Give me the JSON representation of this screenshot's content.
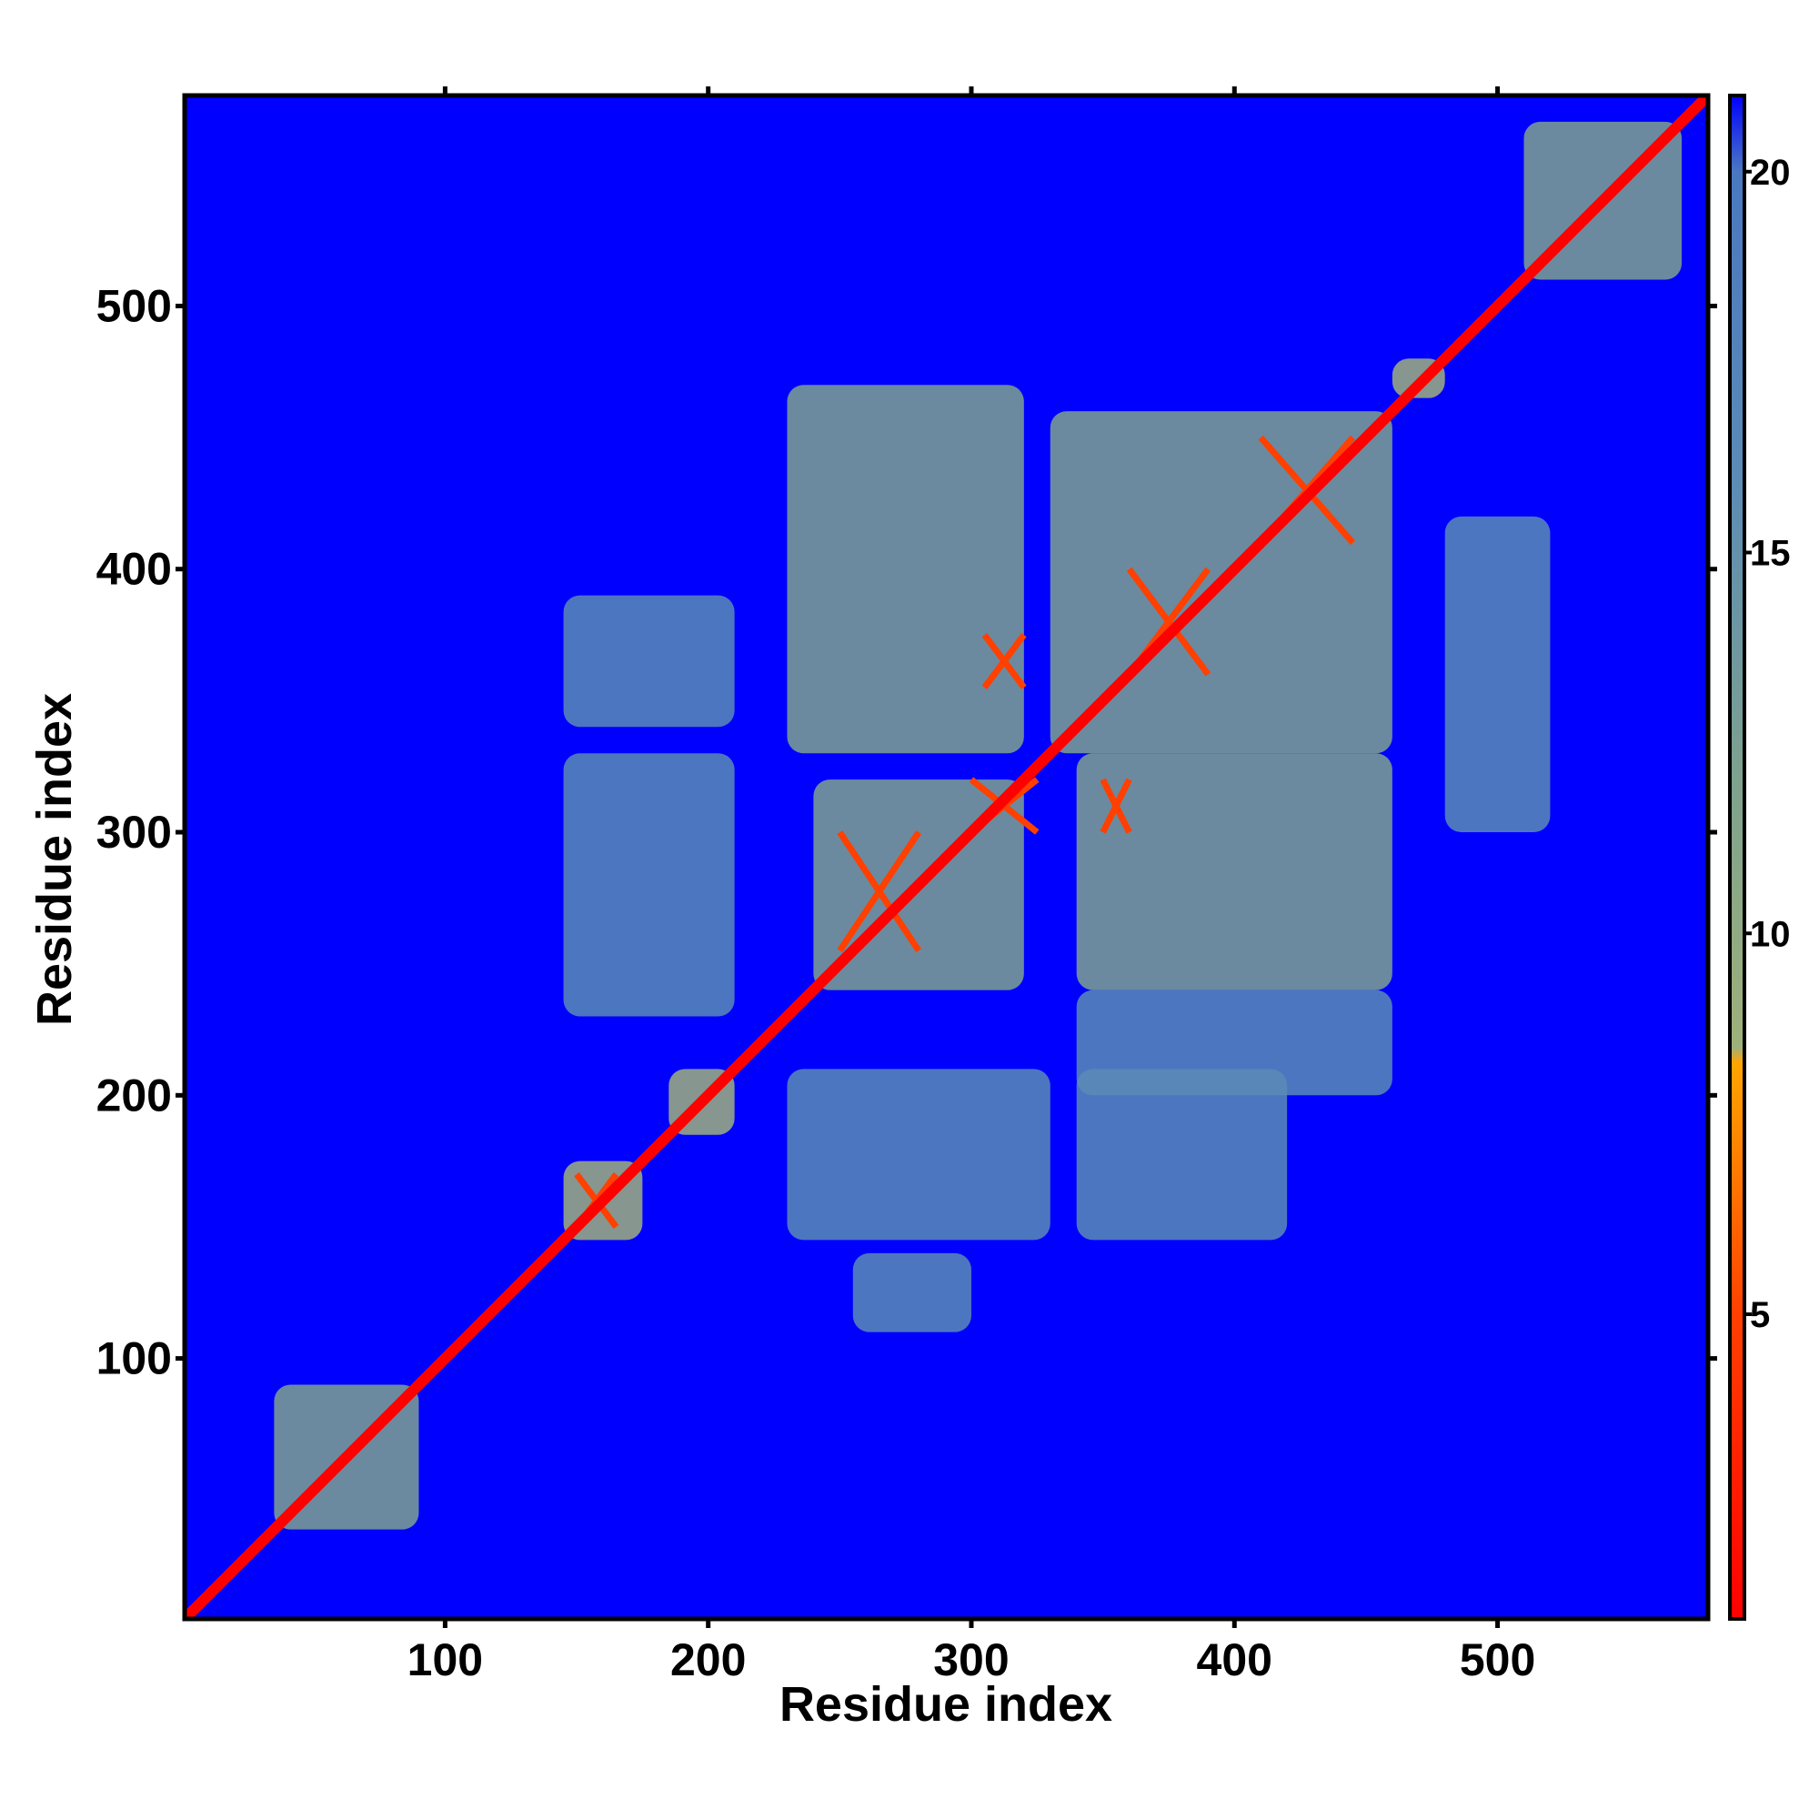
{
  "chart_data": {
    "type": "heatmap",
    "title": "",
    "xlabel": "Residue index",
    "ylabel": "Residue index",
    "xlim": [
      1,
      580
    ],
    "ylim": [
      1,
      580
    ],
    "x_ticks": [
      100,
      200,
      300,
      400,
      500
    ],
    "y_ticks": [
      100,
      200,
      300,
      400,
      500
    ],
    "x_tick_labels": [
      "100",
      "200",
      "300",
      "400",
      "500"
    ],
    "y_tick_labels": [
      "100",
      "200",
      "300",
      "400",
      "500"
    ],
    "colorbar": {
      "range": [
        1,
        21
      ],
      "ticks": [
        5,
        10,
        15,
        20
      ],
      "tick_labels": [
        "5",
        "10",
        "15",
        "20"
      ],
      "stops": [
        {
          "value": 1,
          "color": "#ff0000"
        },
        {
          "value": 5,
          "color": "#ff4000"
        },
        {
          "value": 8.3,
          "color": "#ffa500"
        },
        {
          "value": 8.5,
          "color": "#9fb07a"
        },
        {
          "value": 12,
          "color": "#7ea28e"
        },
        {
          "value": 16,
          "color": "#5b8bb6"
        },
        {
          "value": 20,
          "color": "#4a78c0"
        },
        {
          "value": 21,
          "color": "#0000ff"
        }
      ]
    },
    "background_value": 21,
    "background_color": "#0000ff",
    "diagonal": {
      "value": 1,
      "color": "#ff0000"
    },
    "contact_regions": [
      {
        "x": [
          35,
          90
        ],
        "y": [
          35,
          90
        ],
        "value": 14
      },
      {
        "x": [
          145,
          175
        ],
        "y": [
          145,
          175
        ],
        "value": 12
      },
      {
        "x": [
          185,
          210
        ],
        "y": [
          185,
          210
        ],
        "value": 12
      },
      {
        "x": [
          240,
          320
        ],
        "y": [
          240,
          320
        ],
        "value": 14
      },
      {
        "x": [
          330,
          460
        ],
        "y": [
          330,
          460
        ],
        "value": 15
      },
      {
        "x": [
          460,
          480
        ],
        "y": [
          465,
          480
        ],
        "value": 12
      },
      {
        "x": [
          510,
          570
        ],
        "y": [
          510,
          570
        ],
        "value": 14
      },
      {
        "x": [
          230,
          320
        ],
        "y": [
          330,
          470
        ],
        "value": 16
      },
      {
        "x": [
          340,
          460
        ],
        "y": [
          240,
          330
        ],
        "value": 16
      },
      {
        "x": [
          145,
          210
        ],
        "y": [
          230,
          330
        ],
        "value": 17
      },
      {
        "x": [
          145,
          210
        ],
        "y": [
          340,
          390
        ],
        "value": 17
      },
      {
        "x": [
          230,
          330
        ],
        "y": [
          145,
          210
        ],
        "value": 17
      },
      {
        "x": [
          340,
          420
        ],
        "y": [
          145,
          210
        ],
        "value": 17
      },
      {
        "x": [
          340,
          460
        ],
        "y": [
          200,
          240
        ],
        "value": 18
      },
      {
        "x": [
          255,
          300
        ],
        "y": [
          110,
          140
        ],
        "value": 19
      },
      {
        "x": [
          480,
          520
        ],
        "y": [
          300,
          420
        ],
        "value": 19
      }
    ],
    "close_contacts": [
      {
        "x": [
          150,
          165
        ],
        "y": [
          150,
          170
        ],
        "value": 6
      },
      {
        "x": [
          250,
          280
        ],
        "y": [
          255,
          300
        ],
        "value": 6
      },
      {
        "x": [
          300,
          325
        ],
        "y": [
          300,
          320
        ],
        "value": 6
      },
      {
        "x": [
          360,
          390
        ],
        "y": [
          360,
          400
        ],
        "value": 6
      },
      {
        "x": [
          410,
          445
        ],
        "y": [
          410,
          450
        ],
        "value": 6
      },
      {
        "x": [
          350,
          360
        ],
        "y": [
          300,
          320
        ],
        "value": 7
      },
      {
        "x": [
          305,
          320
        ],
        "y": [
          355,
          375
        ],
        "value": 7
      }
    ]
  }
}
